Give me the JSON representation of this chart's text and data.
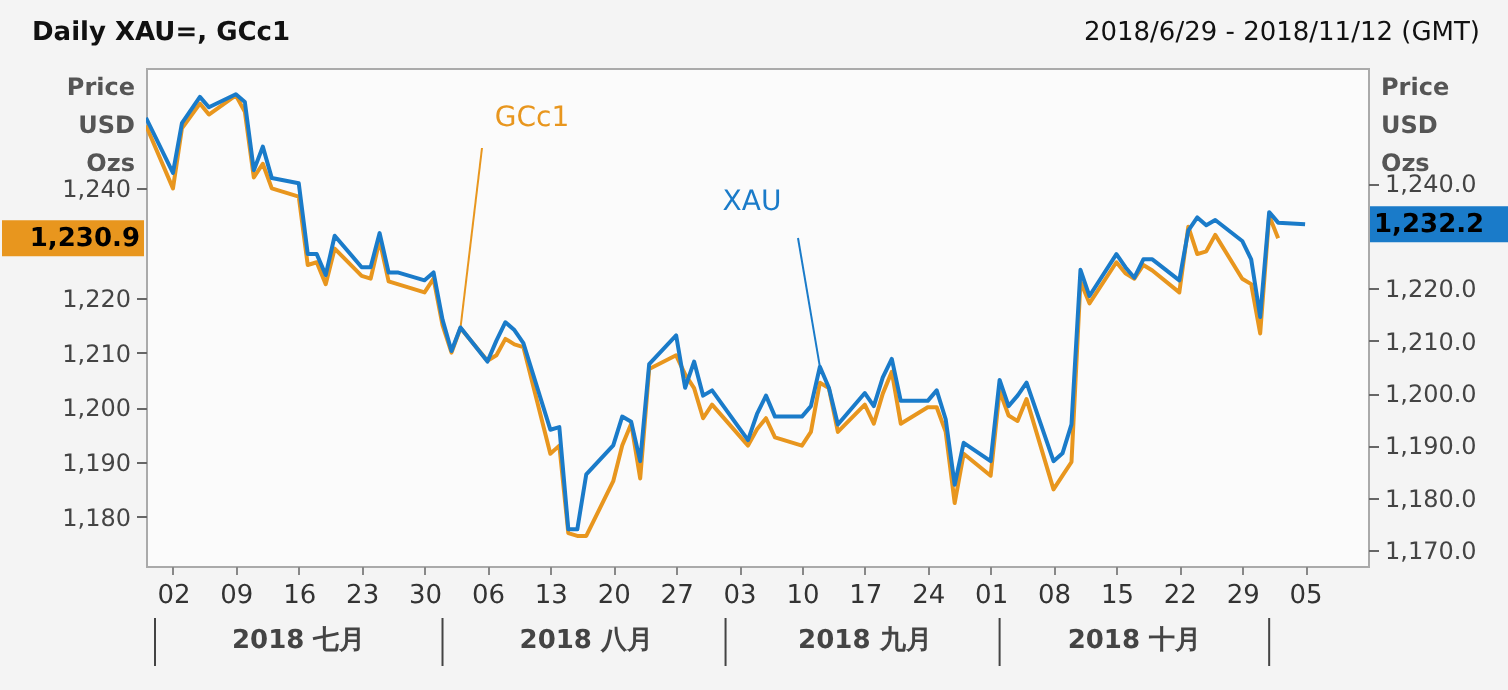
{
  "chart_data": {
    "type": "line",
    "title": "Daily XAU=, GCc1",
    "subtitle": "2018/6/29 - 2018/11/12 (GMT)",
    "ylabel": "Price\nUSD\nOzs",
    "y2label": "Price\nUSD\nOzs",
    "xlim": [
      "2018-06-29",
      "2018-11-12"
    ],
    "xticks": [
      {
        "value": "2018-07-02",
        "label": "02"
      },
      {
        "value": "2018-07-09",
        "label": "09"
      },
      {
        "value": "2018-07-16",
        "label": "16"
      },
      {
        "value": "2018-07-23",
        "label": "23"
      },
      {
        "value": "2018-07-30",
        "label": "30"
      },
      {
        "value": "2018-08-06",
        "label": "06"
      },
      {
        "value": "2018-08-13",
        "label": "13"
      },
      {
        "value": "2018-08-20",
        "label": "20"
      },
      {
        "value": "2018-08-27",
        "label": "27"
      },
      {
        "value": "2018-09-03",
        "label": "03"
      },
      {
        "value": "2018-09-10",
        "label": "10"
      },
      {
        "value": "2018-09-17",
        "label": "17"
      },
      {
        "value": "2018-09-24",
        "label": "24"
      },
      {
        "value": "2018-10-01",
        "label": "01"
      },
      {
        "value": "2018-10-08",
        "label": "08"
      },
      {
        "value": "2018-10-15",
        "label": "15"
      },
      {
        "value": "2018-10-22",
        "label": "22"
      },
      {
        "value": "2018-10-29",
        "label": "29"
      },
      {
        "value": "2018-11-05",
        "label": "05"
      }
    ],
    "x2lim": [
      "2018-06-29",
      "2018-11-12"
    ],
    "x2ticks": [
      {
        "value": "2018-07-16",
        "label": "2018 七月"
      },
      {
        "value": "2018-08-17",
        "label": "2018 八月"
      },
      {
        "value": "2018-09-17",
        "label": "2018 九月"
      },
      {
        "value": "2018-10-17",
        "label": "2018 十月"
      }
    ],
    "ylim": [
      1171,
      1262
    ],
    "yticks": [
      {
        "value": 1180,
        "label": "1,180"
      },
      {
        "value": 1190,
        "label": "1,190"
      },
      {
        "value": 1200,
        "label": "1,200"
      },
      {
        "value": 1210,
        "label": "1,210"
      },
      {
        "value": 1220,
        "label": "1,220"
      },
      {
        "value": 1240,
        "label": "1,240"
      }
    ],
    "y2lim": [
      1167,
      1262
    ],
    "y2ticks": [
      {
        "value": 1170,
        "label": "1,170.0"
      },
      {
        "value": 1180,
        "label": "1,180.0"
      },
      {
        "value": 1190,
        "label": "1,190.0"
      },
      {
        "value": 1200,
        "label": "1,200.0"
      },
      {
        "value": 1210,
        "label": "1,210.0"
      },
      {
        "value": 1220,
        "label": "1,220.0"
      },
      {
        "value": 1240,
        "label": "1,240.0"
      }
    ],
    "x": [
      "2018-06-29",
      "2018-07-02",
      "2018-07-03",
      "2018-07-05",
      "2018-07-06",
      "2018-07-09",
      "2018-07-10",
      "2018-07-11",
      "2018-07-12",
      "2018-07-13",
      "2018-07-16",
      "2018-07-17",
      "2018-07-18",
      "2018-07-19",
      "2018-07-20",
      "2018-07-23",
      "2018-07-24",
      "2018-07-25",
      "2018-07-26",
      "2018-07-27",
      "2018-07-30",
      "2018-07-31",
      "2018-08-01",
      "2018-08-02",
      "2018-08-03",
      "2018-08-06",
      "2018-08-07",
      "2018-08-08",
      "2018-08-09",
      "2018-08-10",
      "2018-08-13",
      "2018-08-14",
      "2018-08-15",
      "2018-08-16",
      "2018-08-17",
      "2018-08-20",
      "2018-08-21",
      "2018-08-22",
      "2018-08-23",
      "2018-08-24",
      "2018-08-27",
      "2018-08-28",
      "2018-08-29",
      "2018-08-30",
      "2018-08-31",
      "2018-09-04",
      "2018-09-05",
      "2018-09-06",
      "2018-09-07",
      "2018-09-10",
      "2018-09-11",
      "2018-09-12",
      "2018-09-13",
      "2018-09-14",
      "2018-09-17",
      "2018-09-18",
      "2018-09-19",
      "2018-09-20",
      "2018-09-21",
      "2018-09-24",
      "2018-09-25",
      "2018-09-26",
      "2018-09-27",
      "2018-09-28",
      "2018-10-01",
      "2018-10-02",
      "2018-10-03",
      "2018-10-04",
      "2018-10-05",
      "2018-10-08",
      "2018-10-09",
      "2018-10-10",
      "2018-10-11",
      "2018-10-12",
      "2018-10-15",
      "2018-10-16",
      "2018-10-17",
      "2018-10-18",
      "2018-10-19",
      "2018-10-22",
      "2018-10-23",
      "2018-10-24",
      "2018-10-25",
      "2018-10-26",
      "2018-10-29",
      "2018-10-30",
      "2018-10-31",
      "2018-11-01",
      "2018-11-02"
    ],
    "series": [
      {
        "name": "GCc1",
        "color": "#e8961e",
        "values": [
          1251.5,
          1240,
          1251,
          1255.5,
          1253.5,
          1257,
          1254,
          1242,
          1244.5,
          1240,
          1238.5,
          1226,
          1226.5,
          1222.5,
          1229,
          1224,
          1223.5,
          1230.5,
          1223,
          1222.5,
          1221,
          1223.5,
          1215,
          1210,
          1214.5,
          1208.5,
          1209.5,
          1212.5,
          1211.5,
          1211,
          1191.5,
          1193,
          1177,
          1176.5,
          1176.5,
          1186.5,
          1193,
          1197,
          1187,
          1207,
          1209.5,
          1206,
          1203.5,
          1198,
          1200.5,
          1193,
          1196,
          1198,
          1194.5,
          1193,
          1195.5,
          1204.5,
          1203.5,
          1195.5,
          1200.5,
          1197,
          1202.5,
          1206.5,
          1197,
          1200,
          1200,
          1195.5,
          1182.5,
          1191.5,
          1187.5,
          1203,
          1198.5,
          1197.5,
          1201.5,
          1185,
          1187.5,
          1190,
          1223,
          1219,
          1226.5,
          1224.5,
          1223.5,
          1226,
          1225,
          1221,
          1233,
          1228,
          1228.5,
          1231.5,
          1223.5,
          1222.5,
          1213.5,
          1235,
          1230.9
        ]
      },
      {
        "name": "XAU",
        "color": "#1a7bc9",
        "axis": "y2",
        "x": [
          "2018-06-29",
          "2018-07-02",
          "2018-07-03",
          "2018-07-05",
          "2018-07-06",
          "2018-07-09",
          "2018-07-10",
          "2018-07-11",
          "2018-07-12",
          "2018-07-13",
          "2018-07-16",
          "2018-07-17",
          "2018-07-18",
          "2018-07-19",
          "2018-07-20",
          "2018-07-23",
          "2018-07-24",
          "2018-07-25",
          "2018-07-26",
          "2018-07-27",
          "2018-07-30",
          "2018-07-31",
          "2018-08-01",
          "2018-08-02",
          "2018-08-03",
          "2018-08-06",
          "2018-08-07",
          "2018-08-08",
          "2018-08-09",
          "2018-08-10",
          "2018-08-13",
          "2018-08-14",
          "2018-08-15",
          "2018-08-16",
          "2018-08-17",
          "2018-08-20",
          "2018-08-21",
          "2018-08-22",
          "2018-08-23",
          "2018-08-24",
          "2018-08-27",
          "2018-08-28",
          "2018-08-29",
          "2018-08-30",
          "2018-08-31",
          "2018-09-04",
          "2018-09-05",
          "2018-09-06",
          "2018-09-07",
          "2018-09-10",
          "2018-09-11",
          "2018-09-12",
          "2018-09-13",
          "2018-09-14",
          "2018-09-17",
          "2018-09-18",
          "2018-09-19",
          "2018-09-20",
          "2018-09-21",
          "2018-09-24",
          "2018-09-25",
          "2018-09-26",
          "2018-09-27",
          "2018-09-28",
          "2018-10-01",
          "2018-10-02",
          "2018-10-03",
          "2018-10-04",
          "2018-10-05",
          "2018-10-08",
          "2018-10-09",
          "2018-10-10",
          "2018-10-11",
          "2018-10-12",
          "2018-10-15",
          "2018-10-16",
          "2018-10-17",
          "2018-10-18",
          "2018-10-19",
          "2018-10-22",
          "2018-10-23",
          "2018-10-24",
          "2018-10-25",
          "2018-10-26",
          "2018-10-29",
          "2018-10-30",
          "2018-10-31",
          "2018-11-01",
          "2018-11-02",
          "2018-11-05"
        ],
        "values": [
          1252.5,
          1242,
          1251.5,
          1256.5,
          1254.5,
          1257,
          1255.5,
          1242.5,
          1247,
          1241,
          1240,
          1226.5,
          1226.5,
          1222.5,
          1230,
          1224,
          1224,
          1230.5,
          1223,
          1223,
          1221.5,
          1223,
          1214,
          1208,
          1212.5,
          1206,
          1210,
          1213.5,
          1212,
          1209.5,
          1193,
          1193.5,
          1174,
          1174,
          1184.5,
          1190,
          1195.5,
          1194.5,
          1187,
          1205.5,
          1211,
          1201,
          1206,
          1199.5,
          1200.5,
          1191,
          1196,
          1199.5,
          1195.5,
          1195.5,
          1197.5,
          1205,
          1201,
          1194,
          1200,
          1197.5,
          1203,
          1206.5,
          1198.5,
          1198.5,
          1200.5,
          1195,
          1182.5,
          1190.5,
          1187,
          1202.5,
          1197.5,
          1199.5,
          1202,
          1187,
          1188.5,
          1194,
          1223.5,
          1218.5,
          1226.5,
          1224,
          1222,
          1225.5,
          1225.5,
          1221.5,
          1231,
          1233.5,
          1232,
          1233,
          1229,
          1225.5,
          1214.5,
          1234.5,
          1232.5,
          1232.2
        ]
      }
    ],
    "annotations": [
      "1,230.9",
      "1,232.2"
    ]
  }
}
